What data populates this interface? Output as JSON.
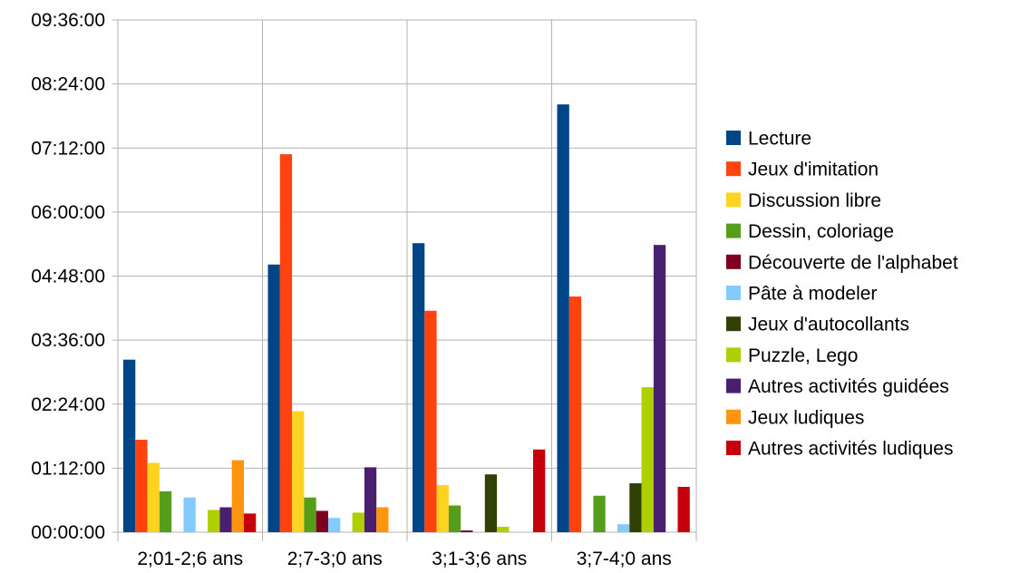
{
  "chart_data": {
    "type": "bar",
    "title": "",
    "xlabel": "",
    "ylabel": "",
    "y_unit": "time hh:mm:ss",
    "ylim_seconds": [
      0,
      34560
    ],
    "y_ticks": [
      {
        "label": "00:00:00",
        "seconds": 0
      },
      {
        "label": "01:12:00",
        "seconds": 4320
      },
      {
        "label": "02:24:00",
        "seconds": 8640
      },
      {
        "label": "03:36:00",
        "seconds": 12960
      },
      {
        "label": "04:48:00",
        "seconds": 17280
      },
      {
        "label": "06:00:00",
        "seconds": 21600
      },
      {
        "label": "07:12:00",
        "seconds": 25920
      },
      {
        "label": "08:24:00",
        "seconds": 30240
      },
      {
        "label": "09:36:00",
        "seconds": 34560
      }
    ],
    "categories": [
      "2;01-2;6 ans",
      "2;7-3;0 ans",
      "3;1-3;6 ans",
      "3;7-4;0 ans"
    ],
    "grid": true,
    "legend_position": "right",
    "series": [
      {
        "name": "Lecture",
        "color": "#004586",
        "values_seconds": [
          11640,
          18060,
          19500,
          28860
        ]
      },
      {
        "name": "Jeux d'imitation",
        "color": "#ff420e",
        "values_seconds": [
          6240,
          25500,
          14940,
          15900
        ]
      },
      {
        "name": "Discussion libre",
        "color": "#ffd320",
        "values_seconds": [
          4680,
          8160,
          3180,
          0
        ]
      },
      {
        "name": "Dessin, coloriage",
        "color": "#579d1c",
        "values_seconds": [
          2760,
          2340,
          1800,
          2460
        ]
      },
      {
        "name": "Découverte de l'alphabet",
        "color": "#7e0021",
        "values_seconds": [
          0,
          1440,
          120,
          0
        ]
      },
      {
        "name": "Pâte à modeler",
        "color": "#83caff",
        "values_seconds": [
          2340,
          960,
          0,
          540
        ]
      },
      {
        "name": "Jeux d'autocollants",
        "color": "#314004",
        "values_seconds": [
          0,
          0,
          3900,
          3300
        ]
      },
      {
        "name": "Puzzle, Lego",
        "color": "#aecf00",
        "values_seconds": [
          1500,
          1320,
          360,
          9780
        ]
      },
      {
        "name": "Autres activités guidées",
        "color": "#4b1f6f",
        "values_seconds": [
          1680,
          4380,
          0,
          19380
        ]
      },
      {
        "name": "Jeux ludiques",
        "color": "#ff950e",
        "values_seconds": [
          4860,
          1680,
          0,
          0
        ]
      },
      {
        "name": "Autres activités ludiques",
        "color": "#c5000b",
        "values_seconds": [
          1260,
          0,
          5580,
          3060
        ]
      }
    ]
  }
}
